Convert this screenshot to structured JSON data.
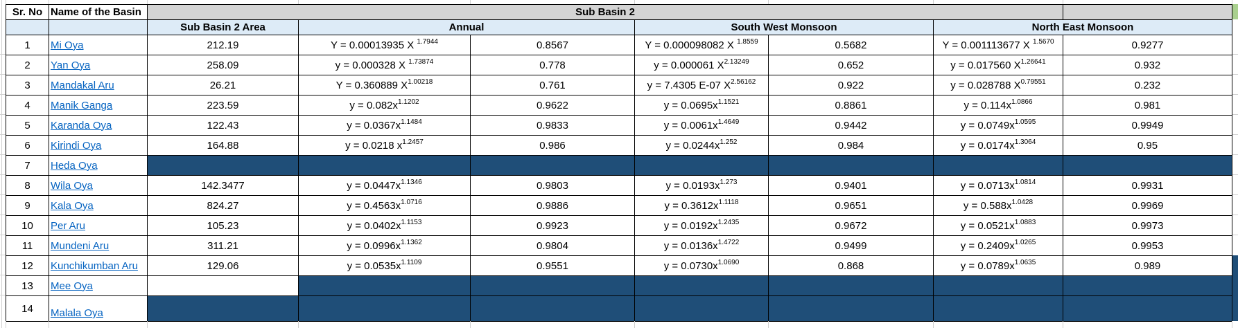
{
  "table": {
    "header": {
      "sr_no": "Sr. No",
      "name": "Name of the Basin",
      "group": "Sub Basin 2",
      "sub": [
        "Sub Basin 2 Area",
        "Annual",
        "South West Monsoon",
        "North East Monsoon"
      ]
    },
    "colors": {
      "group_header_bg": "#D4D4D4",
      "sub_header_bg": "#DDEBF7",
      "dark_fill": "#1F4E78",
      "hyperlink": "#0563C1",
      "grid_border": "#000000",
      "faint_grid": "#D0D0D0",
      "side_green": "#A9D08E"
    },
    "rows": [
      {
        "sr": "1",
        "name": "Mi Oya",
        "area": "212.19",
        "annual": {
          "eq": "Y = 0.00013935 X ",
          "exp": "1.7944",
          "r2": "0.8567"
        },
        "swm": {
          "eq": "Y = 0.000098082 X ",
          "exp": "1.8559",
          "r2": "0.5682"
        },
        "nem": {
          "eq": "Y = 0.001113677 X ",
          "exp": "1.5670",
          "r2": "0.9277"
        },
        "area_filled": false,
        "data_filled": false,
        "tall": false
      },
      {
        "sr": "2",
        "name": "Yan Oya",
        "area": "258.09",
        "annual": {
          "eq": "y = 0.000328 X ",
          "exp": "1.73874",
          "r2": "0.778"
        },
        "swm": {
          "eq": "y = 0.000061 X",
          "exp": "2.13249",
          "r2": "0.652"
        },
        "nem": {
          "eq": "y = 0.017560 X",
          "exp": "1.26641",
          "r2": "0.932"
        },
        "area_filled": false,
        "data_filled": false,
        "tall": false
      },
      {
        "sr": "3",
        "name": "Mandakal Aru",
        "area": "26.21",
        "annual": {
          "eq": "Y = 0.360889 X",
          "exp": "1.00218",
          "r2": "0.761"
        },
        "swm": {
          "eq": "y = 7.4305 E-07 X",
          "exp": "2.56162",
          "r2": "0.922"
        },
        "nem": {
          "eq": "y = 0.028788 X",
          "exp": "0.79551",
          "r2": "0.232"
        },
        "area_filled": false,
        "data_filled": false,
        "tall": false
      },
      {
        "sr": "4",
        "name": "Manik Ganga",
        "area": "223.59",
        "annual": {
          "eq": "y = 0.082x",
          "exp": "1.1202",
          "r2": "0.9622"
        },
        "swm": {
          "eq": "y = 0.0695x",
          "exp": "1.1521",
          "r2": "0.8861"
        },
        "nem": {
          "eq": "y = 0.114x",
          "exp": "1.0866",
          "r2": "0.981"
        },
        "area_filled": false,
        "data_filled": false,
        "tall": false
      },
      {
        "sr": "5",
        "name": "Karanda Oya",
        "area": "122.43",
        "annual": {
          "eq": "y = 0.0367x",
          "exp": "1.1484",
          "r2": "0.9833"
        },
        "swm": {
          "eq": "y = 0.0061x",
          "exp": "1.4649",
          "r2": "0.9442"
        },
        "nem": {
          "eq": "y = 0.0749x",
          "exp": "1.0595",
          "r2": "0.9949"
        },
        "area_filled": false,
        "data_filled": false,
        "tall": false
      },
      {
        "sr": "6",
        "name": "Kirindi Oya",
        "area": "164.88",
        "annual": {
          "eq": "y = 0.0218 x",
          "exp": "1.2457",
          "r2": "0.986"
        },
        "swm": {
          "eq": "y = 0.0244x",
          "exp": "1.252",
          "r2": "0.984"
        },
        "nem": {
          "eq": "y = 0.0174x",
          "exp": "1.3064",
          "r2": "0.95"
        },
        "area_filled": false,
        "data_filled": false,
        "tall": false
      },
      {
        "sr": "7",
        "name": "Heda Oya",
        "area": null,
        "annual": null,
        "swm": null,
        "nem": null,
        "area_filled": true,
        "data_filled": true,
        "tall": false
      },
      {
        "sr": "8",
        "name": "Wila Oya",
        "area": "142.3477",
        "annual": {
          "eq": "y = 0.0447x",
          "exp": "1.1346",
          "r2": "0.9803"
        },
        "swm": {
          "eq": "y = 0.0193x",
          "exp": "1.273",
          "r2": "0.9401"
        },
        "nem": {
          "eq": "y = 0.0713x",
          "exp": "1.0814",
          "r2": "0.9931"
        },
        "area_filled": false,
        "data_filled": false,
        "tall": false
      },
      {
        "sr": "9",
        "name": "Kala Oya",
        "area": "824.27",
        "annual": {
          "eq": "y = 0.4563x",
          "exp": "1.0716",
          "r2": "0.9886"
        },
        "swm": {
          "eq": "y = 0.3612x",
          "exp": "1.1118",
          "r2": "0.9651"
        },
        "nem": {
          "eq": "y = 0.588x",
          "exp": "1.0428",
          "r2": "0.9969"
        },
        "area_filled": false,
        "data_filled": false,
        "tall": false
      },
      {
        "sr": "10",
        "name": "Per Aru",
        "area": "105.23",
        "annual": {
          "eq": "y = 0.0402x",
          "exp": "1.1153",
          "r2": "0.9923"
        },
        "swm": {
          "eq": "y = 0.0192x",
          "exp": "1.2435",
          "r2": "0.9672"
        },
        "nem": {
          "eq": "y = 0.0521x",
          "exp": "1.0883",
          "r2": "0.9973"
        },
        "area_filled": false,
        "data_filled": false,
        "tall": false
      },
      {
        "sr": "11",
        "name": "Mundeni Aru",
        "area": "311.21",
        "annual": {
          "eq": "y = 0.0996x",
          "exp": "1.1362",
          "r2": "0.9804"
        },
        "swm": {
          "eq": "y = 0.0136x",
          "exp": "1.4722",
          "r2": "0.9499"
        },
        "nem": {
          "eq": "y = 0.2409x",
          "exp": "1.0265",
          "r2": "0.9953"
        },
        "area_filled": false,
        "data_filled": false,
        "tall": false
      },
      {
        "sr": "12",
        "name": "Kunchikumban Aru",
        "area": "129.06",
        "annual": {
          "eq": "y = 0.0535x",
          "exp": "1.1109",
          "r2": "0.9551"
        },
        "swm": {
          "eq": "y = 0.0730x",
          "exp": "1.0690",
          "r2": "0.868"
        },
        "nem": {
          "eq": "y = 0.0789x",
          "exp": "1.0635",
          "r2": "0.989"
        },
        "area_filled": false,
        "data_filled": false,
        "tall": false
      },
      {
        "sr": "13",
        "name": "Mee Oya",
        "area": null,
        "annual": null,
        "swm": null,
        "nem": null,
        "area_filled": false,
        "data_filled": true,
        "tall": false
      },
      {
        "sr": "14",
        "name": "Malala Oya",
        "area": null,
        "annual": null,
        "swm": null,
        "nem": null,
        "area_filled": true,
        "data_filled": true,
        "tall": true
      }
    ]
  }
}
